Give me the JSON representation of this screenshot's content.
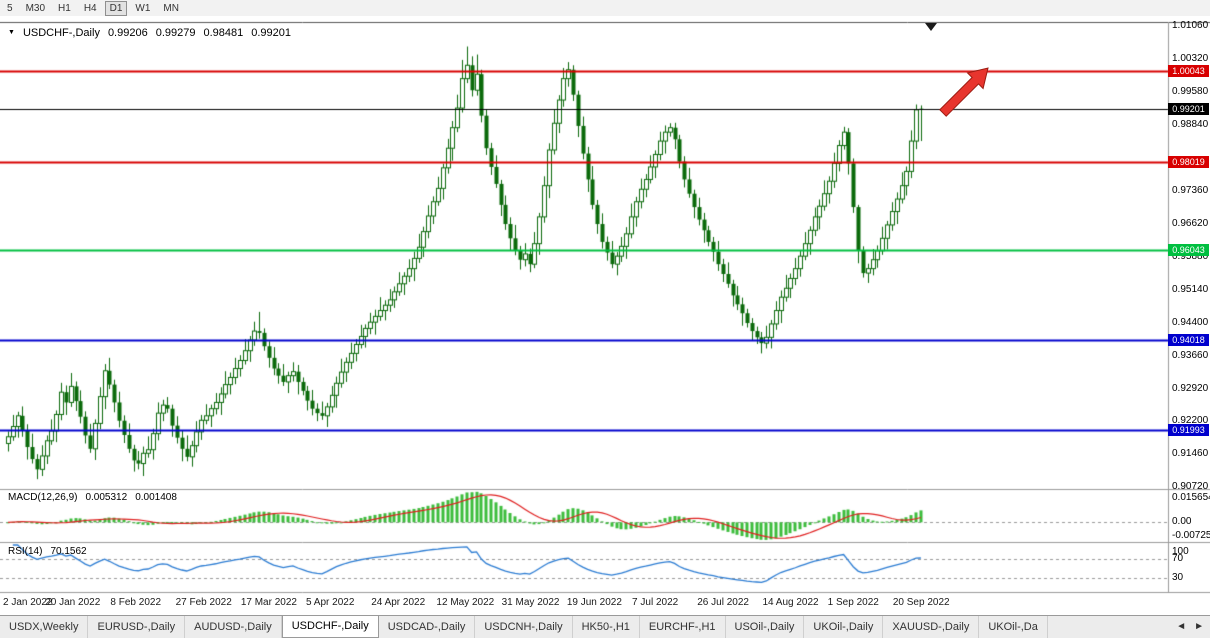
{
  "toolbar": {
    "timeframes": [
      "5",
      "M30",
      "H1",
      "H4",
      "D1",
      "W1",
      "MN"
    ],
    "active_timeframe": "D1"
  },
  "chart": {
    "symbol": "USDCHF",
    "period": "Daily",
    "collapse_icon": "▼",
    "title_symbol": "USDCHF-,Daily",
    "quote_open": "0.99206",
    "quote_high": "0.99279",
    "quote_low": "0.98481",
    "quote_close": "0.99201",
    "price_axis_ticks": [
      "1.01060",
      "1.00320",
      "0.99580",
      "0.98840",
      "0.97360",
      "0.96620",
      "0.95880",
      "0.95140",
      "0.94400",
      "0.93660",
      "0.92920",
      "0.92200",
      "0.91460",
      "0.90720"
    ],
    "levels": [
      {
        "label": "1.00043",
        "price": 1.00043,
        "color": "#d80000",
        "type": "resistance-line"
      },
      {
        "label": "0.99201",
        "price": 0.99201,
        "color": "#000000",
        "type": "current-price"
      },
      {
        "label": "0.98019",
        "price": 0.98019,
        "color": "#d80000",
        "type": "resistance-line"
      },
      {
        "label": "0.96043",
        "price": 0.96043,
        "color": "#00bf40",
        "type": "support-line"
      },
      {
        "label": "0.94018",
        "price": 0.94018,
        "color": "#0000cd",
        "type": "support-line"
      },
      {
        "label": "0.91993",
        "price": 0.91993,
        "color": "#0000cd",
        "type": "support-line"
      }
    ],
    "date_axis_labels": [
      "2 Jan 2022",
      "20 Jan 2022",
      "8 Feb 2022",
      "27 Feb 2022",
      "17 Mar 2022",
      "5 Apr 2022",
      "24 Apr 2022",
      "12 May 2022",
      "31 May 2022",
      "19 Jun 2022",
      "7 Jul 2022",
      "26 Jul 2022",
      "14 Aug 2022",
      "1 Sep 2022",
      "20 Sep 2022"
    ],
    "price_scale_divisor": 100000,
    "candles": [
      [
        91700,
        91970,
        91520,
        91850
      ],
      [
        91850,
        92340,
        91760,
        92080
      ],
      [
        92080,
        92410,
        91830,
        92320
      ],
      [
        92320,
        92530,
        91850,
        91980
      ],
      [
        91980,
        92130,
        91340,
        91620
      ],
      [
        91620,
        91920,
        91250,
        91350
      ],
      [
        91350,
        91460,
        90900,
        91120
      ],
      [
        91120,
        91660,
        90970,
        91420
      ],
      [
        91420,
        91880,
        91240,
        91760
      ],
      [
        91760,
        92240,
        91670,
        91980
      ],
      [
        91980,
        92440,
        91730,
        92350
      ],
      [
        92350,
        93060,
        92220,
        92850
      ],
      [
        92850,
        93000,
        92340,
        92620
      ],
      [
        92620,
        93280,
        92520,
        92980
      ],
      [
        92980,
        93090,
        92430,
        92650
      ],
      [
        92650,
        92890,
        92150,
        92300
      ],
      [
        92300,
        92420,
        91700,
        91880
      ],
      [
        91880,
        92140,
        91490,
        91580
      ],
      [
        91580,
        92240,
        91330,
        92150
      ],
      [
        92150,
        92960,
        92020,
        92750
      ],
      [
        92750,
        93480,
        92470,
        93330
      ],
      [
        93330,
        93620,
        92920,
        93020
      ],
      [
        93020,
        93130,
        92400,
        92620
      ],
      [
        92620,
        92860,
        92060,
        92210
      ],
      [
        92210,
        92330,
        91710,
        91890
      ],
      [
        91890,
        92150,
        91490,
        91580
      ],
      [
        91580,
        91670,
        91070,
        91320
      ],
      [
        91320,
        91530,
        91120,
        91250
      ],
      [
        91250,
        91630,
        90970,
        91480
      ],
      [
        91480,
        91860,
        91380,
        91560
      ],
      [
        91560,
        92030,
        91340,
        91920
      ],
      [
        91920,
        92620,
        91770,
        92380
      ],
      [
        92380,
        92680,
        92200,
        92560
      ],
      [
        92560,
        92740,
        92390,
        92480
      ],
      [
        92480,
        92570,
        91850,
        92100
      ],
      [
        92100,
        92310,
        91700,
        91830
      ],
      [
        91830,
        91980,
        91300,
        91580
      ],
      [
        91580,
        91880,
        91300,
        91400
      ],
      [
        91400,
        91760,
        91180,
        91650
      ],
      [
        91650,
        92200,
        91500,
        91960
      ],
      [
        91960,
        92340,
        91780,
        92220
      ],
      [
        92220,
        92580,
        92130,
        92320
      ],
      [
        92320,
        92570,
        92070,
        92480
      ],
      [
        92480,
        92830,
        92350,
        92620
      ],
      [
        92620,
        92960,
        92340,
        92810
      ],
      [
        92810,
        93320,
        92710,
        93020
      ],
      [
        93020,
        93290,
        92800,
        93180
      ],
      [
        93180,
        93620,
        93030,
        93380
      ],
      [
        93380,
        93680,
        93200,
        93560
      ],
      [
        93560,
        94040,
        93470,
        93780
      ],
      [
        93780,
        94110,
        93530,
        94020
      ],
      [
        94020,
        94430,
        93890,
        94220
      ],
      [
        94220,
        94650,
        94050,
        94180
      ],
      [
        94180,
        94280,
        93780,
        93880
      ],
      [
        93880,
        93990,
        93400,
        93620
      ],
      [
        93620,
        93860,
        93230,
        93380
      ],
      [
        93380,
        93500,
        93040,
        93220
      ],
      [
        93220,
        93480,
        92990,
        93080
      ],
      [
        93080,
        93310,
        92830,
        93220
      ],
      [
        93220,
        93520,
        93090,
        93310
      ],
      [
        93310,
        93460,
        92800,
        93080
      ],
      [
        93080,
        93180,
        92780,
        92880
      ],
      [
        92880,
        92990,
        92440,
        92660
      ],
      [
        92660,
        92900,
        92330,
        92480
      ],
      [
        92480,
        92600,
        92200,
        92380
      ],
      [
        92380,
        92640,
        92230,
        92320
      ],
      [
        92320,
        92610,
        92070,
        92520
      ],
      [
        92520,
        92990,
        92390,
        92780
      ],
      [
        92780,
        93200,
        92500,
        93050
      ],
      [
        93050,
        93600,
        92950,
        93300
      ],
      [
        93300,
        93630,
        93080,
        93520
      ],
      [
        93520,
        93960,
        93370,
        93720
      ],
      [
        93720,
        94040,
        93540,
        93920
      ],
      [
        93920,
        94360,
        93830,
        94100
      ],
      [
        94100,
        94370,
        93850,
        94280
      ],
      [
        94280,
        94630,
        94150,
        94420
      ],
      [
        94420,
        94700,
        94140,
        94550
      ],
      [
        94550,
        94980,
        94450,
        94680
      ],
      [
        94680,
        94910,
        94460,
        94800
      ],
      [
        94800,
        95160,
        94650,
        94920
      ],
      [
        94920,
        95220,
        94740,
        95100
      ],
      [
        95100,
        95540,
        95010,
        95280
      ],
      [
        95280,
        95540,
        95030,
        95450
      ],
      [
        95450,
        95830,
        95320,
        95620
      ],
      [
        95620,
        96000,
        95340,
        95850
      ],
      [
        95850,
        96400,
        95750,
        96100
      ],
      [
        96100,
        96560,
        95880,
        96450
      ],
      [
        96450,
        97040,
        96300,
        96800
      ],
      [
        96800,
        97240,
        96620,
        97120
      ],
      [
        97120,
        97680,
        97030,
        97420
      ],
      [
        97420,
        97970,
        97170,
        97880
      ],
      [
        97880,
        98530,
        97750,
        98320
      ],
      [
        98320,
        98930,
        98040,
        98780
      ],
      [
        98780,
        99520,
        98680,
        99220
      ],
      [
        99220,
        100300,
        99120,
        99880
      ],
      [
        99880,
        100600,
        99780,
        100180
      ],
      [
        100180,
        100380,
        99480,
        99620
      ],
      [
        99620,
        100420,
        99500,
        99980
      ],
      [
        99980,
        100080,
        98900,
        99050
      ],
      [
        99050,
        99190,
        98170,
        98320
      ],
      [
        98320,
        98440,
        97720,
        97900
      ],
      [
        97900,
        98160,
        97430,
        97520
      ],
      [
        97520,
        97610,
        96800,
        97050
      ],
      [
        97050,
        97260,
        96490,
        96620
      ],
      [
        96620,
        96770,
        96020,
        96300
      ],
      [
        96300,
        96600,
        95920,
        96020
      ],
      [
        96020,
        96130,
        95600,
        95820
      ],
      [
        95820,
        96190,
        95670,
        95950
      ],
      [
        95950,
        96070,
        95540,
        95720
      ],
      [
        95720,
        96440,
        95630,
        96180
      ],
      [
        96180,
        96870,
        95930,
        96780
      ],
      [
        96780,
        97690,
        96650,
        97480
      ],
      [
        97480,
        98430,
        97200,
        98280
      ],
      [
        98280,
        99180,
        98180,
        98880
      ],
      [
        98880,
        99510,
        98660,
        99400
      ],
      [
        99400,
        100120,
        99250,
        99880
      ],
      [
        99880,
        100250,
        99700,
        100080
      ],
      [
        100080,
        100180,
        99380,
        99520
      ],
      [
        99520,
        99610,
        98570,
        98820
      ],
      [
        98820,
        99030,
        98070,
        98200
      ],
      [
        98200,
        98350,
        97340,
        97620
      ],
      [
        97620,
        97920,
        96950,
        97050
      ],
      [
        97050,
        97160,
        96400,
        96620
      ],
      [
        96620,
        96860,
        96070,
        96220
      ],
      [
        96220,
        96340,
        95800,
        95980
      ],
      [
        95980,
        96240,
        95630,
        95720
      ],
      [
        95720,
        95990,
        95470,
        95900
      ],
      [
        95900,
        96330,
        95770,
        96120
      ],
      [
        96120,
        96550,
        95840,
        96400
      ],
      [
        96400,
        97080,
        96300,
        96780
      ],
      [
        96780,
        97230,
        96560,
        97120
      ],
      [
        97120,
        97640,
        96970,
        97400
      ],
      [
        97400,
        97740,
        97220,
        97620
      ],
      [
        97620,
        98160,
        97530,
        97900
      ],
      [
        97900,
        98270,
        97650,
        98180
      ],
      [
        98180,
        98690,
        98050,
        98480
      ],
      [
        98480,
        98830,
        98200,
        98680
      ],
      [
        98680,
        98880,
        98580,
        98780
      ],
      [
        98780,
        98890,
        98300,
        98520
      ],
      [
        98520,
        98620,
        97870,
        98020
      ],
      [
        98020,
        98140,
        97440,
        97620
      ],
      [
        97620,
        97880,
        97210,
        97300
      ],
      [
        97300,
        97390,
        96750,
        97000
      ],
      [
        97000,
        97210,
        96590,
        96720
      ],
      [
        96720,
        96870,
        96200,
        96480
      ],
      [
        96480,
        96580,
        96120,
        96220
      ],
      [
        96220,
        96330,
        95780,
        96000
      ],
      [
        96000,
        96240,
        95570,
        95720
      ],
      [
        95720,
        95840,
        95320,
        95500
      ],
      [
        95500,
        95760,
        95190,
        95280
      ],
      [
        95280,
        95370,
        94770,
        95020
      ],
      [
        95020,
        95230,
        94690,
        94820
      ],
      [
        94820,
        94970,
        94340,
        94620
      ],
      [
        94620,
        94720,
        94300,
        94400
      ],
      [
        94400,
        94510,
        94000,
        94220
      ],
      [
        94220,
        94320,
        93930,
        94080
      ],
      [
        94080,
        94200,
        93720,
        93950
      ],
      [
        93950,
        94340,
        93830,
        94080
      ],
      [
        94080,
        94470,
        93830,
        94380
      ],
      [
        94380,
        94890,
        94250,
        94680
      ],
      [
        94680,
        95130,
        94400,
        94980
      ],
      [
        94980,
        95480,
        94880,
        95180
      ],
      [
        95180,
        95510,
        94960,
        95400
      ],
      [
        95400,
        95860,
        95250,
        95620
      ],
      [
        95620,
        96020,
        95440,
        95900
      ],
      [
        95900,
        96440,
        95810,
        96180
      ],
      [
        96180,
        96570,
        95930,
        96480
      ],
      [
        96480,
        96990,
        96350,
        96780
      ],
      [
        96780,
        97170,
        96500,
        97020
      ],
      [
        97020,
        97600,
        96920,
        97300
      ],
      [
        97300,
        97690,
        97080,
        97580
      ],
      [
        97580,
        98220,
        97430,
        97980
      ],
      [
        97980,
        98500,
        97800,
        98380
      ],
      [
        98380,
        98800,
        98290,
        98680
      ],
      [
        98680,
        98770,
        97730,
        97980
      ],
      [
        97980,
        98090,
        96870,
        97000
      ],
      [
        97000,
        97050,
        95740,
        96020
      ],
      [
        96020,
        96120,
        95420,
        95520
      ],
      [
        95520,
        95730,
        95300,
        95620
      ],
      [
        95620,
        96060,
        95470,
        95820
      ],
      [
        95820,
        96140,
        95640,
        96020
      ],
      [
        96020,
        96560,
        95930,
        96300
      ],
      [
        96300,
        96690,
        96050,
        96600
      ],
      [
        96600,
        97110,
        96470,
        96900
      ],
      [
        96900,
        97330,
        96620,
        97180
      ],
      [
        97180,
        97780,
        97080,
        97480
      ],
      [
        97480,
        97910,
        97260,
        97800
      ],
      [
        97800,
        98720,
        97650,
        98480
      ],
      [
        98480,
        99300,
        98300,
        99180
      ],
      [
        99206,
        99279,
        98481,
        99201
      ]
    ]
  },
  "macd": {
    "label": "MACD(12,26,9)",
    "value_main": "0.005312",
    "value_signal": "0.001408",
    "axis_labels": [
      "0.015654",
      "0.00",
      "-0.007255"
    ],
    "fast": 12,
    "slow": 26,
    "signal": 9,
    "histogram_color": "#3dbd3d",
    "signal_color": "#e02020"
  },
  "rsi": {
    "label": "RSI(14)",
    "value": "70.1562",
    "axis_labels": [
      "100",
      "70",
      "30"
    ],
    "period": 14,
    "levels": [
      70,
      30
    ],
    "line_color": "#2b7cd3"
  },
  "annotations": {
    "trend_arrow_color": "#e8352e",
    "trend_arrow_stroke": "#9b1c12"
  },
  "tabs": {
    "items": [
      "USDX,Weekly",
      "EURUSD-,Daily",
      "AUDUSD-,Daily",
      "USDCHF-,Daily",
      "USDCAD-,Daily",
      "USDCNH-,Daily",
      "HK50-,H1",
      "EURCHF-,H1",
      "USOil-,Daily",
      "UKOil-,Daily",
      "XAUUSD-,Daily",
      "UKOil-,Da"
    ],
    "active": "USDCHF-,Daily",
    "scroll_left_icon": "◄",
    "scroll_right_icon": "►"
  },
  "colors": {
    "bull_body": "#ffffff",
    "bear_body": "#0b6a0b",
    "candle_outline": "#0b6a0b",
    "pane_separator": "#9a9a9a",
    "chart_top_border": "#555555"
  }
}
